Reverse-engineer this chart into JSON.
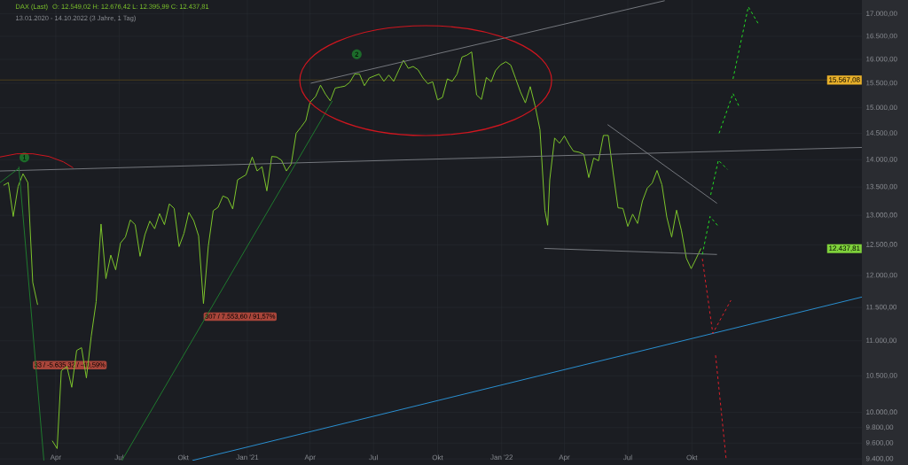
{
  "chart_data": {
    "type": "line",
    "title": "DAX (Last)",
    "subtitle": "O: 12.549,02  H: 12.676,42  L: 12.395,99  C: 12.437,81",
    "annotations": [
      "13.01.2020 - 14.10.2022   (3 Jahre, 1 Tag)",
      {
        "text": "1",
        "x": "2020-02-16",
        "y": 14040
      },
      {
        "text": "2",
        "x": "2021-06-07",
        "y": 16110
      },
      {
        "text": "33 / -5.635,32 / -40,59%",
        "x": "2020-02-28",
        "y": 10650
      },
      {
        "text": "307 / 7.553,60 / 91,57%",
        "x": "2020-10-30",
        "y": 11360
      },
      "15.567,08",
      "12.437,81"
    ],
    "ref_lines": [
      {
        "axis": "y",
        "value": 15567.08,
        "color": "#4a3d1c"
      }
    ],
    "log": "y",
    "grid": true,
    "marker": "none",
    "xlim": [
      "2020-01-12",
      "2023-06-02"
    ],
    "xticks": [
      {
        "value": "2020-04-01",
        "label": "Apr"
      },
      {
        "value": "2020-07-01",
        "label": "Jul"
      },
      {
        "value": "2020-10-01",
        "label": "Okt"
      },
      {
        "value": "2021-01-01",
        "label": "Jan '21"
      },
      {
        "value": "2021-04-01",
        "label": "Apr"
      },
      {
        "value": "2021-07-01",
        "label": "Jul"
      },
      {
        "value": "2021-10-01",
        "label": "Okt"
      },
      {
        "value": "2022-01-01",
        "label": "Jan '22"
      },
      {
        "value": "2022-04-01",
        "label": "Apr"
      },
      {
        "value": "2022-07-01",
        "label": "Jul"
      },
      {
        "value": "2022-10-01",
        "label": "Okt"
      }
    ],
    "ylim": [
      9380,
      17320
    ],
    "yticks": [
      {
        "value": 9400,
        "label": "9.400,00"
      },
      {
        "value": 9600,
        "label": "9.600,00"
      },
      {
        "value": 9800,
        "label": "9.800,00"
      },
      {
        "value": 10000,
        "label": "10.000,00"
      },
      {
        "value": 10500,
        "label": "10.500,00"
      },
      {
        "value": 11000,
        "label": "11.000,00"
      },
      {
        "value": 11500,
        "label": "11.500,00"
      },
      {
        "value": 12000,
        "label": "12.000,00"
      },
      {
        "value": 12500,
        "label": "12.500,00"
      },
      {
        "value": 13000,
        "label": "13.000,00"
      },
      {
        "value": 13500,
        "label": "13.500,00"
      },
      {
        "value": 14000,
        "label": "14.000,00"
      },
      {
        "value": 14500,
        "label": "14.500,00"
      },
      {
        "value": 15000,
        "label": "15.000,00"
      },
      {
        "value": 15500,
        "label": "15.500,00"
      },
      {
        "value": 16000,
        "label": "16.000,00"
      },
      {
        "value": 16500,
        "label": "16.500,00"
      },
      {
        "value": 17000,
        "label": "17.000,00"
      }
    ],
    "series": [
      {
        "type": "line",
        "color": "#7cc42b",
        "x": [
          "2020-01-17",
          "2020-01-24",
          "2020-01-31",
          "2020-02-07",
          "2020-02-14",
          "2020-02-21",
          "2020-02-28",
          "2020-03-06",
          "2020-03-13",
          "2020-03-20",
          "2020-03-27",
          "2020-04-03",
          "2020-04-09",
          "2020-04-17",
          "2020-04-24",
          "2020-05-01",
          "2020-05-08",
          "2020-05-15",
          "2020-05-22",
          "2020-05-29",
          "2020-06-05",
          "2020-06-12",
          "2020-06-19",
          "2020-06-26",
          "2020-07-03",
          "2020-07-10",
          "2020-07-17",
          "2020-07-24",
          "2020-07-31",
          "2020-08-07",
          "2020-08-14",
          "2020-08-21",
          "2020-08-28",
          "2020-09-04",
          "2020-09-11",
          "2020-09-18",
          "2020-09-25",
          "2020-10-02",
          "2020-10-09",
          "2020-10-16",
          "2020-10-23",
          "2020-10-30",
          "2020-11-06",
          "2020-11-13",
          "2020-11-20",
          "2020-11-27",
          "2020-12-04",
          "2020-12-11",
          "2020-12-18",
          "2020-12-30",
          "2021-01-08",
          "2021-01-15",
          "2021-01-22",
          "2021-01-29",
          "2021-02-05",
          "2021-02-12",
          "2021-02-19",
          "2021-02-26",
          "2021-03-05",
          "2021-03-12",
          "2021-03-19",
          "2021-03-26",
          "2021-04-01",
          "2021-04-09",
          "2021-04-16",
          "2021-04-23",
          "2021-04-30",
          "2021-05-07",
          "2021-05-14",
          "2021-05-21",
          "2021-05-28",
          "2021-06-04",
          "2021-06-11",
          "2021-06-18",
          "2021-06-25",
          "2021-07-02",
          "2021-07-09",
          "2021-07-16",
          "2021-07-23",
          "2021-07-30",
          "2021-08-06",
          "2021-08-13",
          "2021-08-20",
          "2021-08-27",
          "2021-09-03",
          "2021-09-10",
          "2021-09-17",
          "2021-09-24",
          "2021-10-01",
          "2021-10-08",
          "2021-10-15",
          "2021-10-22",
          "2021-10-29",
          "2021-11-05",
          "2021-11-12",
          "2021-11-19",
          "2021-11-26",
          "2021-12-03",
          "2021-12-10",
          "2021-12-17",
          "2021-12-23",
          "2021-12-30",
          "2022-01-07",
          "2022-01-14",
          "2022-01-21",
          "2022-01-28",
          "2022-02-04",
          "2022-02-11",
          "2022-02-18",
          "2022-02-25",
          "2022-03-04",
          "2022-03-08",
          "2022-03-11",
          "2022-03-18",
          "2022-03-25",
          "2022-04-01",
          "2022-04-08",
          "2022-04-14",
          "2022-04-22",
          "2022-04-29",
          "2022-05-06",
          "2022-05-13",
          "2022-05-20",
          "2022-05-27",
          "2022-06-03",
          "2022-06-10",
          "2022-06-17",
          "2022-06-24",
          "2022-07-01",
          "2022-07-08",
          "2022-07-15",
          "2022-07-22",
          "2022-07-29",
          "2022-08-05",
          "2022-08-12",
          "2022-08-19",
          "2022-08-26",
          "2022-09-02",
          "2022-09-09",
          "2022-09-16",
          "2022-09-23",
          "2022-09-30",
          "2022-10-07",
          "2022-10-14"
        ],
        "values": [
          13530,
          13580,
          12980,
          13510,
          13740,
          13580,
          11890,
          11540,
          null,
          null,
          9630,
          9530,
          10570,
          10630,
          10340,
          10860,
          10900,
          10470,
          11070,
          11590,
          12850,
          11950,
          12330,
          12090,
          12530,
          12630,
          12920,
          12840,
          12310,
          12670,
          12900,
          12770,
          13030,
          12840,
          13200,
          13120,
          12470,
          12690,
          13050,
          12910,
          12650,
          11560,
          12480,
          13080,
          13140,
          13340,
          13300,
          13110,
          13630,
          13720,
          14050,
          13790,
          13870,
          13430,
          14060,
          14050,
          13990,
          13790,
          13920,
          14500,
          14620,
          14750,
          15110,
          15230,
          15460,
          15280,
          15140,
          15400,
          15420,
          15440,
          15520,
          15690,
          15690,
          15450,
          15610,
          15650,
          15690,
          15540,
          15670,
          15540,
          15760,
          15980,
          15810,
          15850,
          15780,
          15610,
          15490,
          15530,
          15160,
          15210,
          15590,
          15540,
          15690,
          16050,
          16090,
          16160,
          15260,
          15170,
          15620,
          15530,
          15760,
          15880,
          15950,
          15880,
          15600,
          15320,
          15100,
          15430,
          15040,
          14570,
          13090,
          12830,
          13630,
          14410,
          14310,
          14450,
          14280,
          14160,
          14140,
          14100,
          13670,
          14030,
          13980,
          14460,
          14460,
          13760,
          13130,
          13120,
          12810,
          13020,
          12860,
          13250,
          13480,
          13570,
          13800,
          13540,
          12970,
          12630,
          13090,
          12740,
          12280,
          12110,
          12270,
          12440
        ]
      },
      {
        "type": "line",
        "color": "#74777d",
        "x": [
          "2021-04-02",
          "2022-08-23"
        ],
        "values": [
          15500,
          17300
        ]
      },
      {
        "type": "line",
        "color": "#74777d",
        "x": [
          "2020-01-12",
          "2023-06-02"
        ],
        "values": [
          13790,
          14230
        ]
      },
      {
        "type": "line",
        "color": "#74777d",
        "x": [
          "2022-06-02",
          "2022-11-06"
        ],
        "values": [
          14670,
          13210
        ]
      },
      {
        "type": "line",
        "color": "#74777d",
        "x": [
          "2022-03-03",
          "2022-11-06"
        ],
        "values": [
          12440,
          12340
        ]
      },
      {
        "type": "line",
        "color": "#1f7a2e",
        "x": [
          "2020-07-05",
          "2021-05-03"
        ],
        "values": [
          9380,
          15140
        ]
      },
      {
        "type": "line",
        "color": "#1f7a2e",
        "x": [
          "2020-02-08",
          "2020-03-15"
        ],
        "values": [
          13870,
          9380
        ]
      },
      {
        "type": "line",
        "color": "#1f7a2e",
        "x": [
          "2020-01-12",
          "2020-02-08"
        ],
        "values": [
          13580,
          13840
        ]
      },
      {
        "type": "line",
        "color": "#2a8fd0",
        "x": [
          "2020-10-14",
          "2023-06-02"
        ],
        "values": [
          9380,
          11660
        ]
      },
      {
        "color": "#22dd22",
        "line_style": "dashed",
        "x": [
          "2022-10-16",
          "2022-10-27",
          "2022-11-08"
        ],
        "values": [
          12340,
          12980,
          12810
        ]
      },
      {
        "color": "#22dd22",
        "line_style": "dashed",
        "x": [
          "2022-10-28",
          "2022-11-08",
          "2022-11-21"
        ],
        "values": [
          13360,
          13990,
          13820
        ]
      },
      {
        "color": "#22dd22",
        "line_style": "dashed",
        "x": [
          "2022-11-09",
          "2022-11-29",
          "2022-12-08"
        ],
        "values": [
          14500,
          15290,
          15020
        ]
      },
      {
        "color": "#22dd22",
        "line_style": "dashed",
        "x": [
          "2022-11-29",
          "2022-12-21",
          "2023-01-05"
        ],
        "values": [
          15590,
          17160,
          16760
        ]
      },
      {
        "color": "#e0202a",
        "line_style": "dashed",
        "x": [
          "2022-10-16",
          "2022-10-31",
          "2022-11-26"
        ],
        "values": [
          12270,
          11110,
          11610
        ]
      },
      {
        "color": "#e0202a",
        "line_style": "dashed",
        "x": [
          "2022-11-04",
          "2022-11-19"
        ],
        "values": [
          10790,
          9410
        ]
      },
      {
        "color": "#d0161f",
        "x": [
          "2020-01-12",
          "2020-02-05",
          "2020-02-28",
          "2020-03-22",
          "2020-04-12",
          "2020-04-26"
        ],
        "values": [
          14050,
          14110,
          14110,
          14060,
          13960,
          13850
        ]
      }
    ]
  }
}
